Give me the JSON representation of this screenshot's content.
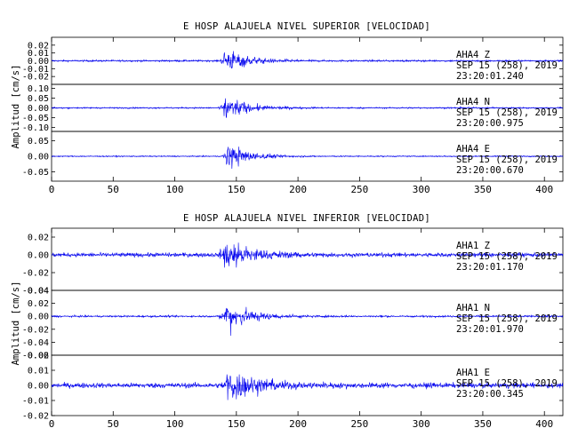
{
  "colors": {
    "trace": "#0000ee",
    "axis": "#000000",
    "background": "#ffffff"
  },
  "chart_data": [
    {
      "type": "line",
      "title": "E HOSP ALAJUELA NIVEL SUPERIOR [VELOCIDAD]",
      "ylabel": "Amplitud [cm/s]",
      "xlabel": "",
      "xlim": [
        0,
        415
      ],
      "xticks": [
        "0",
        "50",
        "100",
        "150",
        "200",
        "250",
        "300",
        "350",
        "400"
      ],
      "grid": false,
      "traces": [
        {
          "station": "AHA4",
          "component": "Z",
          "date": "SEP 15 (258), 2019",
          "time": "23:20:01.240",
          "ylim": [
            -0.03,
            0.03
          ],
          "yticks": [
            "0.02",
            "0.01",
            "0.00",
            "-0.01",
            "-0.02"
          ],
          "peak_sample": 140,
          "peak_amplitude": 0.022,
          "noise_amplitude": 0.0012,
          "decay_samples": 50
        },
        {
          "station": "AHA4",
          "component": "N",
          "date": "SEP 15 (258), 2019",
          "time": "23:20:00.975",
          "ylim": [
            -0.12,
            0.12
          ],
          "yticks": [
            "0.10",
            "0.05",
            "0.00",
            "-0.05",
            "-0.10"
          ],
          "peak_sample": 140,
          "peak_amplitude": 0.09,
          "noise_amplitude": 0.004,
          "decay_samples": 50
        },
        {
          "station": "AHA4",
          "component": "E",
          "date": "SEP 15 (258), 2019",
          "time": "23:20:00.670",
          "ylim": [
            -0.08,
            0.08
          ],
          "yticks": [
            "0.05",
            "0.00",
            "-0.05"
          ],
          "peak_sample": 142,
          "peak_amplitude": 0.06,
          "noise_amplitude": 0.002,
          "decay_samples": 50
        }
      ]
    },
    {
      "type": "line",
      "title": "E HOSP ALAJUELA NIVEL INFERIOR [VELOCIDAD]",
      "ylabel": "Amplitud [cm/s]",
      "xlabel": "",
      "xlim": [
        0,
        415
      ],
      "xticks": [
        "0",
        "50",
        "100",
        "150",
        "200",
        "250",
        "300",
        "350",
        "400"
      ],
      "grid": false,
      "traces": [
        {
          "station": "AHA1",
          "component": "Z",
          "date": "SEP 15 (258), 2019",
          "time": "23:20:01.170",
          "ylim": [
            -0.04,
            0.03
          ],
          "yticks": [
            "0.02",
            "0.00",
            "-0.02",
            "-0.04"
          ],
          "peak_sample": 140,
          "peak_amplitude": 0.025,
          "noise_amplitude": 0.0025,
          "decay_samples": 60
        },
        {
          "station": "AHA1",
          "component": "N",
          "date": "SEP 15 (258), 2019",
          "time": "23:20:01.970",
          "ylim": [
            -0.06,
            0.04
          ],
          "yticks": [
            "0.04",
            "0.02",
            "0.00",
            "-0.02",
            "-0.04",
            "-0.06"
          ],
          "peak_sample": 140,
          "peak_amplitude": 0.035,
          "noise_amplitude": 0.0015,
          "decay_samples": 55
        },
        {
          "station": "AHA1",
          "component": "E",
          "date": "SEP 15 (258), 2019",
          "time": "23:20:00.345",
          "ylim": [
            -0.02,
            0.02
          ],
          "yticks": [
            "0.02",
            "0.01",
            "0.00",
            "-0.01",
            "-0.02"
          ],
          "peak_sample": 142,
          "peak_amplitude": 0.015,
          "noise_amplitude": 0.0018,
          "decay_samples": 70
        }
      ]
    }
  ]
}
